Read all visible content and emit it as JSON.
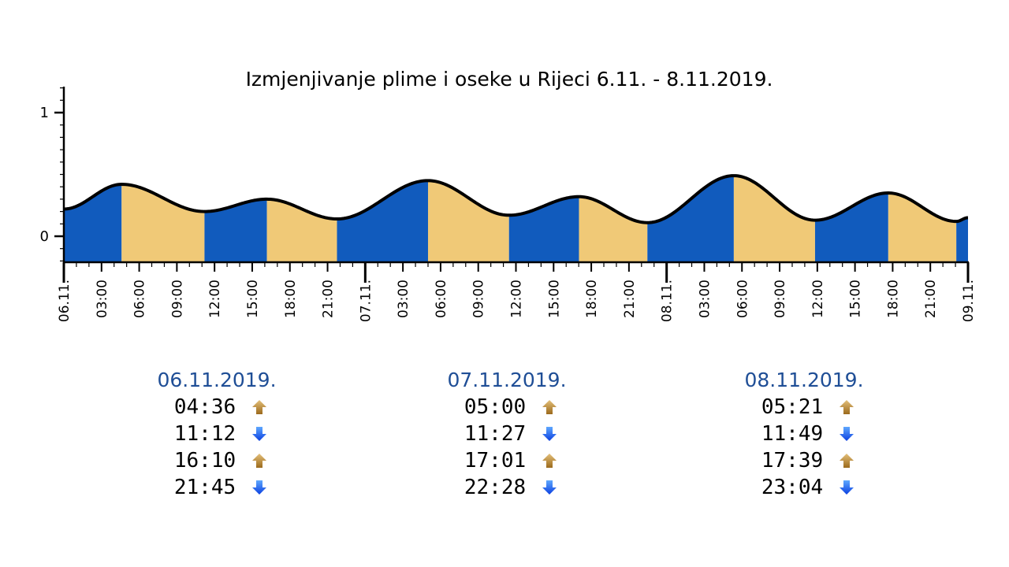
{
  "chart_data": {
    "type": "area",
    "title": "Izmjenjivanje plime i oseke u Rijeci 6.11. - 8.11.2019.",
    "xlabel": "",
    "ylabel": "",
    "ylim": [
      -0.2,
      1.2
    ],
    "y_ticks": [
      "0",
      "1"
    ],
    "x_range_hours": [
      0,
      72
    ],
    "x_tick_labels": [
      "06.11.",
      "03:00",
      "06:00",
      "09:00",
      "12:00",
      "15:00",
      "18:00",
      "21:00",
      "07.11.",
      "03:00",
      "06:00",
      "09:00",
      "12:00",
      "15:00",
      "18:00",
      "21:00",
      "08.11.",
      "03:00",
      "06:00",
      "09:00",
      "12:00",
      "15:00",
      "18:00",
      "21:00",
      "09.11."
    ],
    "x_hours": [
      0,
      4.6,
      11.2,
      16.17,
      21.75,
      29.0,
      35.45,
      41.02,
      46.47,
      53.35,
      59.82,
      65.65,
      71.07,
      72
    ],
    "y": [
      0.22,
      0.42,
      0.2,
      0.3,
      0.14,
      0.45,
      0.17,
      0.32,
      0.11,
      0.49,
      0.13,
      0.35,
      0.12,
      0.15
    ],
    "colors": {
      "rising": "#115bbd",
      "falling": "#f0c977",
      "curve": "#000000"
    }
  },
  "days": [
    {
      "date": "06.11.2019.",
      "tides": [
        {
          "time": "04:36",
          "dir": "up"
        },
        {
          "time": "11:12",
          "dir": "down"
        },
        {
          "time": "16:10",
          "dir": "up"
        },
        {
          "time": "21:45",
          "dir": "down"
        }
      ]
    },
    {
      "date": "07.11.2019.",
      "tides": [
        {
          "time": "05:00",
          "dir": "up"
        },
        {
          "time": "11:27",
          "dir": "down"
        },
        {
          "time": "17:01",
          "dir": "up"
        },
        {
          "time": "22:28",
          "dir": "down"
        }
      ]
    },
    {
      "date": "08.11.2019.",
      "tides": [
        {
          "time": "05:21",
          "dir": "up"
        },
        {
          "time": "11:49",
          "dir": "down"
        },
        {
          "time": "17:39",
          "dir": "up"
        },
        {
          "time": "23:04",
          "dir": "down"
        }
      ]
    }
  ],
  "icons": {
    "up": "arrow-up-gold-icon",
    "down": "arrow-down-blue-icon"
  }
}
